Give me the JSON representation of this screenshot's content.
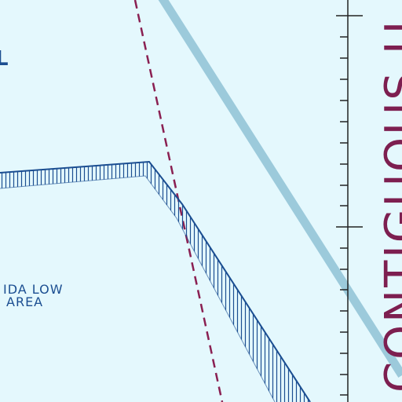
{
  "map": {
    "colors": {
      "background": "#e4f8fd",
      "boundary": "#1b4e91",
      "airway": "#9ccadb",
      "dashed_line": "#8a2052",
      "scale": "#222222",
      "vertical_label": "#7d1f50"
    },
    "labels": {
      "edge_letter": "L",
      "area_line1": "IDA LOW",
      "area_line2": "AREA",
      "vertical_text": "CONTIGUOUS U"
    }
  }
}
